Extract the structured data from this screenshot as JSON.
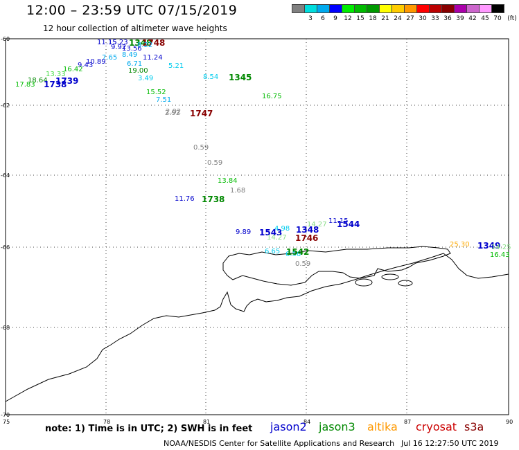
{
  "header": {
    "title": "12:00 – 23:59 UTC 07/15/2019",
    "subtitle": "12 hour collection of altimeter wave heights"
  },
  "legend": {
    "unit": "(ft)",
    "items": [
      {
        "label": "",
        "color": "#808080"
      },
      {
        "label": "3",
        "color": "#00dddd"
      },
      {
        "label": "6",
        "color": "#00aaee"
      },
      {
        "label": "9",
        "color": "#0000ff"
      },
      {
        "label": "12",
        "color": "#00ee00"
      },
      {
        "label": "15",
        "color": "#00bb00"
      },
      {
        "label": "18",
        "color": "#009900"
      },
      {
        "label": "21",
        "color": "#ffff00"
      },
      {
        "label": "24",
        "color": "#ffcc00"
      },
      {
        "label": "27",
        "color": "#ff9900"
      },
      {
        "label": "30",
        "color": "#ff0000"
      },
      {
        "label": "33",
        "color": "#bb0000"
      },
      {
        "label": "36",
        "color": "#880000"
      },
      {
        "label": "39",
        "color": "#aa00aa"
      },
      {
        "label": "42",
        "color": "#cc66cc"
      },
      {
        "label": "45",
        "color": "#ff99ff"
      },
      {
        "label": "70",
        "color": "#000000"
      }
    ]
  },
  "axes": {
    "lat_ticks": [
      "-60",
      "-62",
      "-64",
      "-66",
      "-68",
      "-70"
    ],
    "lon_ticks": [
      "75",
      "78",
      "81",
      "84",
      "87",
      "90"
    ]
  },
  "observations": [
    {
      "text": "11.15",
      "color": "#0000cc"
    },
    {
      "text": "15.23",
      "color": "#0000cc"
    },
    {
      "text": "1348",
      "color": "#008800",
      "bold": true
    },
    {
      "text": "1748",
      "color": "#880000",
      "bold": true
    },
    {
      "text": "9.92",
      "color": "#0000cc"
    },
    {
      "text": "13.56",
      "color": "#0000cc"
    },
    {
      "text": "8.22",
      "color": "#00aaee"
    },
    {
      "text": "8.49",
      "color": "#00aaee"
    },
    {
      "text": "7.65",
      "color": "#00aaee"
    },
    {
      "text": "11.24",
      "color": "#0000cc"
    },
    {
      "text": "10.89",
      "color": "#0000cc"
    },
    {
      "text": "9.43",
      "color": "#0000cc"
    },
    {
      "text": "6.71",
      "color": "#00aaee"
    },
    {
      "text": "5.21",
      "color": "#00ccee"
    },
    {
      "text": "16.42",
      "color": "#00bb00"
    },
    {
      "text": "13.33",
      "color": "#44dd44"
    },
    {
      "text": "19.00",
      "color": "#008800"
    },
    {
      "text": "3.49",
      "color": "#00ccee"
    },
    {
      "text": "18.64",
      "color": "#008800"
    },
    {
      "text": "1739",
      "color": "#0000cc",
      "bold": true
    },
    {
      "text": "17.83",
      "color": "#00bb00"
    },
    {
      "text": "1738",
      "color": "#0000cc",
      "bold": true
    },
    {
      "text": "8.54",
      "color": "#00ccee"
    },
    {
      "text": "1345",
      "color": "#008800",
      "bold": true
    },
    {
      "text": "15.52",
      "color": "#00bb00"
    },
    {
      "text": "7.51",
      "color": "#00aaee"
    },
    {
      "text": "16.75",
      "color": "#00bb00"
    },
    {
      "text": "2.02",
      "color": "#808080"
    },
    {
      "text": "2.92",
      "color": "#808080"
    },
    {
      "text": "1747",
      "color": "#880000",
      "bold": true
    },
    {
      "text": "0.59",
      "color": "#808080"
    },
    {
      "text": "0.59",
      "color": "#808080"
    },
    {
      "text": "13.84",
      "color": "#00bb00"
    },
    {
      "text": "1.68",
      "color": "#808080"
    },
    {
      "text": "11.76",
      "color": "#0000cc"
    },
    {
      "text": "1738",
      "color": "#008800",
      "bold": true
    },
    {
      "text": "9.89",
      "color": "#0000cc"
    },
    {
      "text": "1543",
      "color": "#0000cc",
      "bold": true
    },
    {
      "text": "4.98",
      "color": "#00ccee"
    },
    {
      "text": "14.27",
      "color": "#88dd88"
    },
    {
      "text": "14.27",
      "color": "#88dd88"
    },
    {
      "text": "1348",
      "color": "#0000cc",
      "bold": true
    },
    {
      "text": "11.15",
      "color": "#0000cc"
    },
    {
      "text": "1544",
      "color": "#0000cc",
      "bold": true
    },
    {
      "text": "1746",
      "color": "#880000",
      "bold": true
    },
    {
      "text": "6.65",
      "color": "#00ccee"
    },
    {
      "text": "6.56",
      "color": "#00ccee"
    },
    {
      "text": "1542",
      "color": "#008800",
      "bold": true
    },
    {
      "text": "0.59",
      "color": "#808080"
    },
    {
      "text": "25.30",
      "color": "#ffaa00"
    },
    {
      "text": "1349",
      "color": "#0000cc",
      "bold": true
    },
    {
      "text": "14.25",
      "color": "#88dd88"
    },
    {
      "text": "16.43",
      "color": "#00bb00"
    }
  ],
  "footer": {
    "note": "note:  1) Time is in UTC;  2) SWH is in feet",
    "satellites": [
      {
        "name": "jason2",
        "color": "#0000cc"
      },
      {
        "name": "jason3",
        "color": "#008800"
      },
      {
        "name": "altika",
        "color": "#ff9900"
      },
      {
        "name": "cryosat",
        "color": "#cc0000"
      },
      {
        "name": "s3a",
        "color": "#880000"
      }
    ],
    "credit": "NOAA/NESDIS Center for Satellite Applications and Research",
    "timestamp": "Jul 16 12:27:50 UTC 2019"
  }
}
